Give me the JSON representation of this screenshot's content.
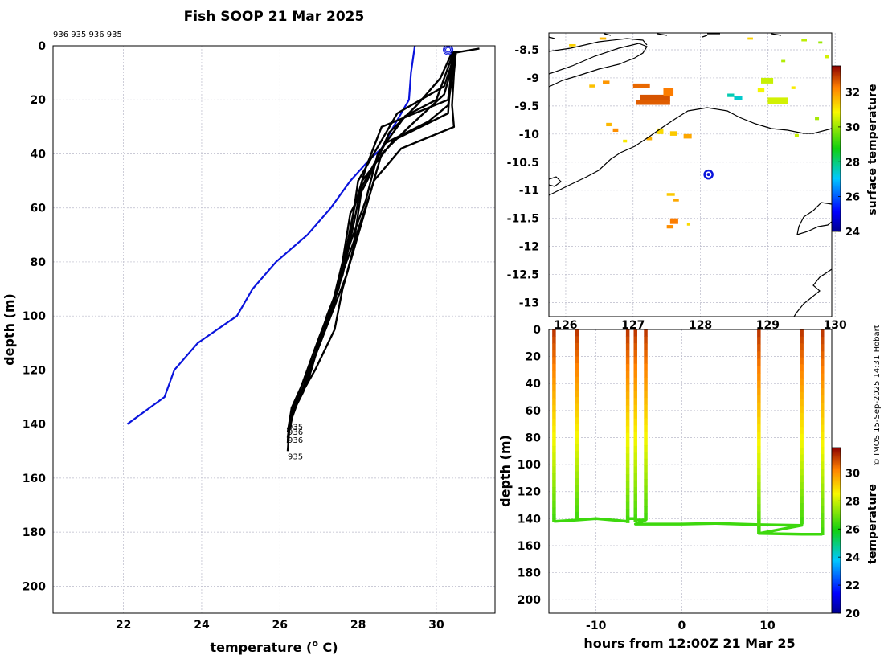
{
  "copyright": "© IMOS 15-Sep-2025 14:31 Hobart",
  "chart_data": [
    {
      "id": "profiles",
      "type": "line",
      "title": "Fish SOOP 21 Mar 2025",
      "xlabel": "temperature (",
      "xlabel_sup": "o",
      "xlabel_tail": " C)",
      "ylabel": "depth (m)",
      "xlim": [
        20.2,
        31.5
      ],
      "ylim": [
        0,
        210
      ],
      "y_reversed": true,
      "xticks": [
        22,
        24,
        26,
        28,
        30
      ],
      "yticks": [
        0,
        20,
        40,
        60,
        80,
        100,
        120,
        140,
        160,
        180,
        200
      ],
      "top_annotation": "936 935 936 935",
      "bottom_annotations": [
        {
          "text": "935",
          "x": 26.2,
          "y": 142
        },
        {
          "text": "936",
          "x": 26.2,
          "y": 144
        },
        {
          "text": "936",
          "x": 26.2,
          "y": 147
        },
        {
          "text": "935",
          "x": 26.2,
          "y": 153
        }
      ],
      "climatology": {
        "name": "climatology",
        "color": "#0a14dc",
        "points": [
          [
            29.45,
            0
          ],
          [
            29.4,
            5
          ],
          [
            29.35,
            10
          ],
          [
            29.3,
            20
          ],
          [
            28.9,
            30
          ],
          [
            28.6,
            38
          ],
          [
            28.3,
            42
          ],
          [
            27.8,
            50
          ],
          [
            27.3,
            60
          ],
          [
            26.7,
            70
          ],
          [
            26.3,
            75
          ],
          [
            25.9,
            80
          ],
          [
            25.3,
            90
          ],
          [
            24.9,
            100
          ],
          [
            23.9,
            110
          ],
          [
            23.3,
            120
          ],
          [
            23.05,
            130
          ],
          [
            22.1,
            140
          ]
        ]
      },
      "marker": {
        "x": 30.3,
        "y": 1.5,
        "color": "#0a14dc"
      },
      "profiles": [
        {
          "color": "#000000",
          "points": [
            [
              31.1,
              1
            ],
            [
              30.5,
              2.5
            ],
            [
              30.45,
              10
            ],
            [
              30.4,
              22
            ],
            [
              30.45,
              30
            ],
            [
              29.1,
              38
            ],
            [
              28.4,
              50
            ],
            [
              28.2,
              60
            ],
            [
              27.9,
              75
            ],
            [
              27.6,
              90
            ],
            [
              27.4,
              105
            ],
            [
              26.9,
              120
            ],
            [
              26.5,
              130
            ],
            [
              26.25,
              140
            ],
            [
              26.2,
              150
            ]
          ]
        },
        {
          "color": "#000000",
          "points": [
            [
              30.4,
              2
            ],
            [
              30.35,
              15
            ],
            [
              30.3,
              25
            ],
            [
              28.9,
              35
            ],
            [
              28.1,
              50
            ],
            [
              27.9,
              65
            ],
            [
              27.6,
              85
            ],
            [
              27.2,
              100
            ],
            [
              26.8,
              120
            ],
            [
              26.4,
              133
            ],
            [
              26.2,
              143
            ]
          ]
        },
        {
          "color": "#000000",
          "points": [
            [
              30.45,
              2
            ],
            [
              30.3,
              20
            ],
            [
              28.6,
              30
            ],
            [
              28.2,
              45
            ],
            [
              27.9,
              60
            ],
            [
              27.7,
              75
            ],
            [
              27.4,
              95
            ],
            [
              27.0,
              110
            ],
            [
              26.7,
              125
            ],
            [
              26.3,
              135
            ],
            [
              26.2,
              145
            ]
          ]
        },
        {
          "color": "#000000",
          "points": [
            [
              30.5,
              2
            ],
            [
              30.2,
              15
            ],
            [
              29.0,
              25
            ],
            [
              28.6,
              35
            ],
            [
              28.0,
              50
            ],
            [
              27.8,
              70
            ],
            [
              27.5,
              90
            ],
            [
              27.1,
              105
            ],
            [
              26.6,
              128
            ],
            [
              26.25,
              138
            ],
            [
              26.2,
              147
            ]
          ]
        },
        {
          "color": "#000000",
          "points": [
            [
              30.5,
              3
            ],
            [
              30.2,
              18
            ],
            [
              29.3,
              30
            ],
            [
              28.6,
              40
            ],
            [
              28.3,
              55
            ],
            [
              28.0,
              68
            ],
            [
              27.7,
              85
            ],
            [
              27.3,
              100
            ],
            [
              26.9,
              115
            ],
            [
              26.5,
              130
            ],
            [
              26.2,
              142
            ]
          ]
        },
        {
          "color": "#000000",
          "points": [
            [
              30.4,
              2.5
            ],
            [
              30.1,
              12
            ],
            [
              29.5,
              22
            ],
            [
              28.8,
              32
            ],
            [
              28.3,
              48
            ],
            [
              27.8,
              62
            ],
            [
              27.6,
              80
            ],
            [
              27.3,
              98
            ],
            [
              26.9,
              112
            ],
            [
              26.4,
              132
            ],
            [
              26.2,
              145
            ]
          ]
        },
        {
          "color": "#000000",
          "points": [
            [
              30.5,
              2
            ],
            [
              30.3,
              22
            ],
            [
              29.8,
              28
            ],
            [
              28.7,
              36
            ],
            [
              28.1,
              52
            ],
            [
              27.9,
              72
            ],
            [
              27.5,
              88
            ],
            [
              27.2,
              103
            ],
            [
              26.8,
              118
            ],
            [
              26.3,
              134
            ],
            [
              26.2,
              143
            ]
          ]
        },
        {
          "color": "#000000",
          "points": [
            [
              30.45,
              2
            ],
            [
              30.0,
              20
            ],
            [
              29.2,
              26
            ],
            [
              28.5,
              40
            ],
            [
              28.2,
              57
            ],
            [
              27.8,
              73
            ],
            [
              27.4,
              93
            ],
            [
              27.0,
              108
            ],
            [
              26.6,
              124
            ],
            [
              26.3,
              136
            ],
            [
              26.2,
              146
            ]
          ]
        }
      ]
    },
    {
      "id": "sst-map",
      "type": "heatmap",
      "xlim": [
        125.75,
        129.95
      ],
      "ylim": [
        -13.25,
        -8.2
      ],
      "xticks": [
        126,
        127,
        128,
        129,
        130
      ],
      "xtick_labels": [
        "126",
        "127",
        "128",
        "129",
        "130"
      ],
      "yticks": [
        -8.5,
        -9,
        -9.5,
        -10,
        -10.5,
        -11,
        -11.5,
        -12,
        -12.5,
        -13
      ],
      "ytick_labels": [
        "-8.5",
        "-9",
        "-9.5",
        "-10",
        "-10.5",
        "-11",
        "-11.5",
        "-12",
        "-12.5",
        "-13"
      ],
      "colorbar": {
        "label": "surface temperature",
        "min": 24,
        "max": 33.5,
        "ticks": [
          24,
          26,
          28,
          30,
          32
        ]
      },
      "ship_position": {
        "lon": 128.12,
        "lat": -10.72
      },
      "cells": [
        {
          "lon": 127.0,
          "lat": -9.1,
          "w": 0.25,
          "h": 0.08,
          "value": 32.5
        },
        {
          "lon": 127.1,
          "lat": -9.3,
          "w": 0.45,
          "h": 0.12,
          "value": 32.7
        },
        {
          "lon": 127.45,
          "lat": -9.18,
          "w": 0.15,
          "h": 0.15,
          "value": 32.3
        },
        {
          "lon": 127.05,
          "lat": -9.4,
          "w": 0.5,
          "h": 0.08,
          "value": 32.6
        },
        {
          "lon": 128.9,
          "lat": -9.0,
          "w": 0.18,
          "h": 0.1,
          "value": 30.4
        },
        {
          "lon": 128.85,
          "lat": -9.18,
          "w": 0.1,
          "h": 0.08,
          "value": 30.8
        },
        {
          "lon": 129.0,
          "lat": -9.35,
          "w": 0.3,
          "h": 0.12,
          "value": 30.5
        },
        {
          "lon": 128.4,
          "lat": -9.28,
          "w": 0.1,
          "h": 0.06,
          "value": 27.6
        },
        {
          "lon": 128.5,
          "lat": -9.33,
          "w": 0.12,
          "h": 0.06,
          "value": 27.4
        },
        {
          "lon": 126.55,
          "lat": -9.05,
          "w": 0.1,
          "h": 0.06,
          "value": 32.0
        },
        {
          "lon": 126.35,
          "lat": -9.12,
          "w": 0.08,
          "h": 0.05,
          "value": 31.5
        },
        {
          "lon": 126.6,
          "lat": -9.8,
          "w": 0.08,
          "h": 0.06,
          "value": 31.6
        },
        {
          "lon": 126.7,
          "lat": -9.9,
          "w": 0.08,
          "h": 0.06,
          "value": 32.1
        },
        {
          "lon": 127.35,
          "lat": -9.9,
          "w": 0.1,
          "h": 0.1,
          "value": 31.2
        },
        {
          "lon": 127.55,
          "lat": -9.95,
          "w": 0.1,
          "h": 0.08,
          "value": 31.4
        },
        {
          "lon": 127.75,
          "lat": -10.0,
          "w": 0.12,
          "h": 0.08,
          "value": 31.8
        },
        {
          "lon": 127.2,
          "lat": -10.05,
          "w": 0.08,
          "h": 0.06,
          "value": 31.7
        },
        {
          "lon": 126.85,
          "lat": -10.1,
          "w": 0.06,
          "h": 0.05,
          "value": 31.0
        },
        {
          "lon": 126.05,
          "lat": -8.4,
          "w": 0.1,
          "h": 0.04,
          "value": 31.3
        },
        {
          "lon": 126.5,
          "lat": -8.28,
          "w": 0.1,
          "h": 0.04,
          "value": 31.6
        },
        {
          "lon": 128.7,
          "lat": -8.28,
          "w": 0.08,
          "h": 0.04,
          "value": 31.3
        },
        {
          "lon": 129.5,
          "lat": -8.3,
          "w": 0.08,
          "h": 0.05,
          "value": 30.3
        },
        {
          "lon": 129.85,
          "lat": -8.6,
          "w": 0.06,
          "h": 0.05,
          "value": 30.5
        },
        {
          "lon": 129.75,
          "lat": -8.35,
          "w": 0.06,
          "h": 0.04,
          "value": 30.0
        },
        {
          "lon": 129.2,
          "lat": -8.68,
          "w": 0.06,
          "h": 0.04,
          "value": 30.2
        },
        {
          "lon": 129.7,
          "lat": -9.7,
          "w": 0.06,
          "h": 0.05,
          "value": 30.1
        },
        {
          "lon": 129.35,
          "lat": -9.15,
          "w": 0.06,
          "h": 0.05,
          "value": 31.0
        },
        {
          "lon": 129.4,
          "lat": -10.0,
          "w": 0.06,
          "h": 0.05,
          "value": 30.4
        },
        {
          "lon": 127.5,
          "lat": -11.05,
          "w": 0.12,
          "h": 0.05,
          "value": 31.4
        },
        {
          "lon": 127.6,
          "lat": -11.15,
          "w": 0.08,
          "h": 0.05,
          "value": 31.8
        },
        {
          "lon": 127.55,
          "lat": -11.5,
          "w": 0.12,
          "h": 0.1,
          "value": 32.3
        },
        {
          "lon": 127.5,
          "lat": -11.62,
          "w": 0.1,
          "h": 0.06,
          "value": 32.1
        },
        {
          "lon": 127.8,
          "lat": -11.58,
          "w": 0.05,
          "h": 0.05,
          "value": 31.2
        }
      ]
    },
    {
      "id": "track-section",
      "type": "scatter",
      "xlabel": "hours from 12:00Z 21 Mar 25",
      "ylabel": "depth (m)",
      "xlim": [
        -15.5,
        17.5
      ],
      "ylim": [
        0,
        210
      ],
      "y_reversed": true,
      "xticks": [
        -10,
        0,
        10
      ],
      "yticks": [
        0,
        20,
        40,
        60,
        80,
        100,
        120,
        140,
        160,
        180,
        200
      ],
      "colorbar": {
        "label": "temperature",
        "min": 20,
        "max": 31.8,
        "ticks": [
          20,
          22,
          24,
          26,
          28,
          30
        ]
      },
      "casts": [
        {
          "hour": -14.9,
          "max_depth": 142
        },
        {
          "hour": -12.2,
          "max_depth": 140
        },
        {
          "hour": -6.3,
          "max_depth": 143
        },
        {
          "hour": -5.4,
          "max_depth": 142
        },
        {
          "hour": -4.2,
          "max_depth": 141
        },
        {
          "hour": 9.0,
          "max_depth": 151
        },
        {
          "hour": 14.0,
          "max_depth": 144
        },
        {
          "hour": 16.4,
          "max_depth": 152
        }
      ],
      "tow_path": [
        [
          -14.9,
          142
        ],
        [
          -12.2,
          141
        ],
        [
          -10,
          140
        ],
        [
          -6.3,
          142
        ],
        [
          -6.3,
          140
        ],
        [
          -5.4,
          140
        ],
        [
          -5.4,
          141
        ],
        [
          -4.2,
          141
        ],
        [
          -5.4,
          144
        ],
        [
          0,
          144
        ],
        [
          4,
          143.5
        ],
        [
          9,
          144.5
        ],
        [
          14,
          145
        ],
        [
          9,
          151
        ],
        [
          14,
          151.5
        ],
        [
          16.4,
          151.5
        ]
      ],
      "surface_temp": 31.2,
      "bottom_temp": 26.4
    }
  ]
}
